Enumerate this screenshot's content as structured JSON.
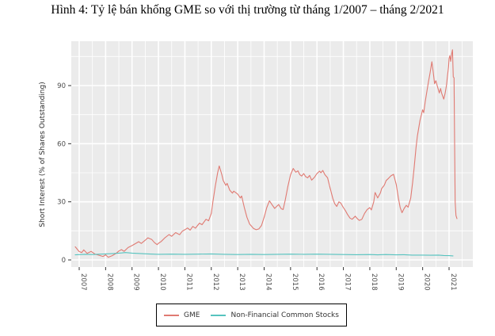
{
  "figure": {
    "caption": "Hình 4: Tỷ lệ bán khống GME so với thị trường từ tháng 1/2007 – tháng 2/2021"
  },
  "chart_data": {
    "type": "line",
    "title": "",
    "xlabel": "",
    "ylabel": "Short Interest (% of Shares Outstanding)",
    "x_ticks": [
      2007,
      2008,
      2009,
      2010,
      2011,
      2012,
      2013,
      2014,
      2015,
      2016,
      2017,
      2018,
      2019,
      2020,
      2021
    ],
    "y_ticks": [
      0,
      30,
      60,
      90
    ],
    "y_minor_ticks": [
      15,
      45,
      75,
      105
    ],
    "xlim": [
      2006.7,
      2021.9
    ],
    "ylim": [
      -3.7,
      112.9
    ],
    "x_tick_rotation_deg": 90,
    "grid": "white major and minor gridlines on gray panel",
    "panel_bg": "#ebebeb",
    "grid_color": "#ffffff",
    "axis_text_color": "#4d4d4d",
    "legend_position": "bottom-boxed",
    "series": [
      {
        "name": "GME",
        "color": "#e07a72",
        "points": [
          [
            2006.85,
            6.8
          ],
          [
            2007.0,
            4.3
          ],
          [
            2007.1,
            3.8
          ],
          [
            2007.17,
            5.2
          ],
          [
            2007.3,
            3.4
          ],
          [
            2007.45,
            4.4
          ],
          [
            2007.6,
            3.0
          ],
          [
            2007.75,
            2.4
          ],
          [
            2007.9,
            1.8
          ],
          [
            2008.0,
            2.6
          ],
          [
            2008.1,
            1.4
          ],
          [
            2008.25,
            2.2
          ],
          [
            2008.4,
            3.4
          ],
          [
            2008.5,
            4.6
          ],
          [
            2008.6,
            5.3
          ],
          [
            2008.7,
            4.4
          ],
          [
            2008.85,
            6.4
          ],
          [
            2009.0,
            7.4
          ],
          [
            2009.15,
            8.6
          ],
          [
            2009.25,
            9.4
          ],
          [
            2009.35,
            8.5
          ],
          [
            2009.5,
            10.2
          ],
          [
            2009.6,
            11.4
          ],
          [
            2009.75,
            10.5
          ],
          [
            2009.85,
            8.9
          ],
          [
            2009.95,
            7.9
          ],
          [
            2010.0,
            8.6
          ],
          [
            2010.1,
            9.5
          ],
          [
            2010.25,
            11.5
          ],
          [
            2010.4,
            13.1
          ],
          [
            2010.5,
            12.2
          ],
          [
            2010.65,
            14.1
          ],
          [
            2010.8,
            13.0
          ],
          [
            2010.9,
            14.8
          ],
          [
            2011.0,
            15.6
          ],
          [
            2011.1,
            16.5
          ],
          [
            2011.2,
            15.4
          ],
          [
            2011.3,
            17.3
          ],
          [
            2011.4,
            16.4
          ],
          [
            2011.55,
            19.0
          ],
          [
            2011.65,
            18.2
          ],
          [
            2011.8,
            21.0
          ],
          [
            2011.9,
            20.2
          ],
          [
            2012.0,
            24.0
          ],
          [
            2012.06,
            30.0
          ],
          [
            2012.15,
            38.0
          ],
          [
            2012.24,
            45.0
          ],
          [
            2012.3,
            48.5
          ],
          [
            2012.4,
            44.0
          ],
          [
            2012.45,
            41.0
          ],
          [
            2012.55,
            38.5
          ],
          [
            2012.6,
            39.5
          ],
          [
            2012.7,
            36.0
          ],
          [
            2012.8,
            34.5
          ],
          [
            2012.85,
            35.5
          ],
          [
            2012.95,
            34.5
          ],
          [
            2013.0,
            34.0
          ],
          [
            2013.1,
            32.0
          ],
          [
            2013.15,
            33.0
          ],
          [
            2013.25,
            27.0
          ],
          [
            2013.35,
            22.0
          ],
          [
            2013.45,
            18.5
          ],
          [
            2013.6,
            16.2
          ],
          [
            2013.7,
            15.6
          ],
          [
            2013.8,
            16.0
          ],
          [
            2013.9,
            17.8
          ],
          [
            2014.0,
            22.0
          ],
          [
            2014.1,
            27.0
          ],
          [
            2014.2,
            30.5
          ],
          [
            2014.3,
            28.5
          ],
          [
            2014.4,
            26.6
          ],
          [
            2014.5,
            28.0
          ],
          [
            2014.55,
            28.6
          ],
          [
            2014.65,
            26.4
          ],
          [
            2014.72,
            26.0
          ],
          [
            2014.8,
            31.0
          ],
          [
            2014.9,
            38.0
          ],
          [
            2015.0,
            44.0
          ],
          [
            2015.1,
            47.2
          ],
          [
            2015.2,
            45.3
          ],
          [
            2015.28,
            46.0
          ],
          [
            2015.35,
            44.0
          ],
          [
            2015.42,
            43.3
          ],
          [
            2015.5,
            44.6
          ],
          [
            2015.57,
            43.0
          ],
          [
            2015.65,
            42.4
          ],
          [
            2015.72,
            43.6
          ],
          [
            2015.8,
            41.2
          ],
          [
            2015.9,
            42.6
          ],
          [
            2016.0,
            44.6
          ],
          [
            2016.1,
            45.8
          ],
          [
            2016.15,
            45.0
          ],
          [
            2016.22,
            46.2
          ],
          [
            2016.3,
            44.0
          ],
          [
            2016.4,
            42.4
          ],
          [
            2016.5,
            37.0
          ],
          [
            2016.6,
            31.8
          ],
          [
            2016.67,
            29.0
          ],
          [
            2016.75,
            27.6
          ],
          [
            2016.83,
            30.0
          ],
          [
            2016.9,
            29.4
          ],
          [
            2017.0,
            27.0
          ],
          [
            2017.08,
            25.4
          ],
          [
            2017.15,
            23.6
          ],
          [
            2017.25,
            21.6
          ],
          [
            2017.33,
            21.0
          ],
          [
            2017.45,
            22.6
          ],
          [
            2017.52,
            21.4
          ],
          [
            2017.6,
            20.4
          ],
          [
            2017.7,
            21.0
          ],
          [
            2017.8,
            24.0
          ],
          [
            2017.9,
            26.0
          ],
          [
            2018.0,
            27.0
          ],
          [
            2018.06,
            25.8
          ],
          [
            2018.15,
            30.0
          ],
          [
            2018.2,
            34.8
          ],
          [
            2018.3,
            32.0
          ],
          [
            2018.4,
            34.6
          ],
          [
            2018.45,
            36.8
          ],
          [
            2018.55,
            38.6
          ],
          [
            2018.62,
            41.0
          ],
          [
            2018.7,
            42.0
          ],
          [
            2018.8,
            43.4
          ],
          [
            2018.9,
            44.2
          ],
          [
            2019.0,
            39.0
          ],
          [
            2019.08,
            32.0
          ],
          [
            2019.15,
            27.0
          ],
          [
            2019.22,
            24.4
          ],
          [
            2019.3,
            26.6
          ],
          [
            2019.38,
            28.2
          ],
          [
            2019.45,
            27.2
          ],
          [
            2019.55,
            32.0
          ],
          [
            2019.62,
            40.0
          ],
          [
            2019.68,
            48.0
          ],
          [
            2019.75,
            58.0
          ],
          [
            2019.8,
            64.0
          ],
          [
            2019.9,
            72.0
          ],
          [
            2020.0,
            77.5
          ],
          [
            2020.04,
            76.0
          ],
          [
            2020.1,
            82.0
          ],
          [
            2020.16,
            87.0
          ],
          [
            2020.22,
            92.0
          ],
          [
            2020.28,
            96.5
          ],
          [
            2020.35,
            102.3
          ],
          [
            2020.4,
            97.0
          ],
          [
            2020.45,
            91.0
          ],
          [
            2020.5,
            92.5
          ],
          [
            2020.55,
            90.0
          ],
          [
            2020.63,
            86.2
          ],
          [
            2020.68,
            88.5
          ],
          [
            2020.72,
            86.0
          ],
          [
            2020.8,
            83.0
          ],
          [
            2020.85,
            86.0
          ],
          [
            2020.9,
            90.0
          ],
          [
            2020.94,
            95.0
          ],
          [
            2020.98,
            99.5
          ],
          [
            2021.0,
            104.0
          ],
          [
            2021.03,
            105.5
          ],
          [
            2021.06,
            102.5
          ],
          [
            2021.1,
            106.5
          ],
          [
            2021.13,
            108.5
          ],
          [
            2021.16,
            94.5
          ],
          [
            2021.19,
            94.0
          ],
          [
            2021.21,
            60.0
          ],
          [
            2021.23,
            30.0
          ],
          [
            2021.26,
            23.0
          ],
          [
            2021.3,
            21.3
          ]
        ]
      },
      {
        "name": "Non-Financial Common Stocks",
        "color": "#56c3bf",
        "points": [
          [
            2006.85,
            2.6
          ],
          [
            2007.2,
            2.9
          ],
          [
            2007.5,
            2.8
          ],
          [
            2007.8,
            3.0
          ],
          [
            2008.0,
            3.1
          ],
          [
            2008.3,
            3.3
          ],
          [
            2008.6,
            3.6
          ],
          [
            2008.75,
            3.8
          ],
          [
            2009.0,
            3.5
          ],
          [
            2009.3,
            3.3
          ],
          [
            2009.6,
            3.1
          ],
          [
            2010.0,
            2.9
          ],
          [
            2010.5,
            3.0
          ],
          [
            2011.0,
            2.9
          ],
          [
            2011.5,
            3.0
          ],
          [
            2012.0,
            3.1
          ],
          [
            2012.5,
            2.9
          ],
          [
            2013.0,
            2.8
          ],
          [
            2013.5,
            2.9
          ],
          [
            2014.0,
            2.8
          ],
          [
            2014.5,
            2.9
          ],
          [
            2015.0,
            3.0
          ],
          [
            2015.5,
            2.9
          ],
          [
            2016.0,
            3.0
          ],
          [
            2016.5,
            2.9
          ],
          [
            2017.0,
            2.8
          ],
          [
            2017.5,
            2.7
          ],
          [
            2018.0,
            2.8
          ],
          [
            2018.3,
            2.6
          ],
          [
            2018.6,
            2.8
          ],
          [
            2019.0,
            2.6
          ],
          [
            2019.3,
            2.7
          ],
          [
            2019.6,
            2.5
          ],
          [
            2020.0,
            2.5
          ],
          [
            2020.3,
            2.4
          ],
          [
            2020.6,
            2.5
          ],
          [
            2020.8,
            2.3
          ],
          [
            2021.0,
            2.2
          ],
          [
            2021.15,
            2.1
          ]
        ]
      }
    ]
  }
}
